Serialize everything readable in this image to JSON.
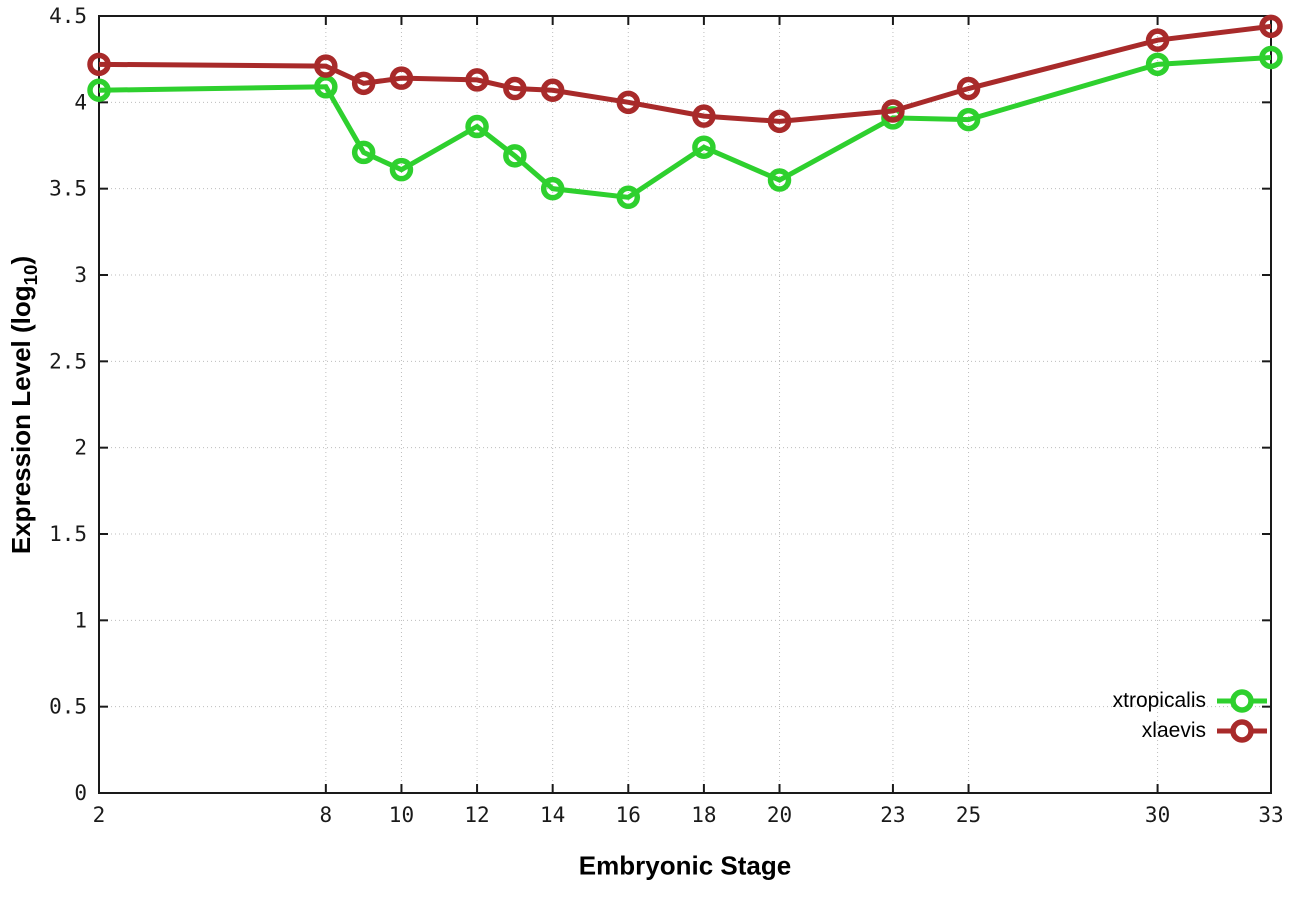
{
  "chart_data": {
    "type": "line",
    "x": [
      2,
      8,
      9,
      10,
      12,
      13,
      14,
      16,
      18,
      20,
      23,
      25,
      30,
      33
    ],
    "series": [
      {
        "name": "xtropicalis",
        "color": "#2ed02e",
        "values": [
          4.07,
          4.09,
          3.71,
          3.61,
          3.86,
          3.69,
          3.5,
          3.45,
          3.74,
          3.55,
          3.91,
          3.9,
          4.22,
          4.26
        ]
      },
      {
        "name": "xlaevis",
        "color": "#a82a2a",
        "values": [
          4.22,
          4.21,
          4.11,
          4.14,
          4.13,
          4.08,
          4.07,
          4.0,
          3.92,
          3.89,
          3.95,
          4.08,
          4.36,
          4.44
        ]
      }
    ],
    "title": "",
    "xlabel": "Embryonic Stage",
    "ylabel": "Expression Level (log10)",
    "ylabel_parts": {
      "main": "Expression Level (log",
      "sub": "10",
      "end": ")"
    },
    "xlim": [
      2,
      33
    ],
    "ylim": [
      0,
      4.5
    ],
    "xticks": [
      2,
      8,
      10,
      12,
      14,
      16,
      18,
      20,
      23,
      25,
      30,
      33
    ],
    "xtick_labels": [
      "2",
      "8",
      "10",
      "12",
      "14",
      "16",
      "18",
      "20",
      "23",
      "25",
      "30",
      "33"
    ],
    "yticks": [
      0,
      0.5,
      1,
      1.5,
      2,
      2.5,
      3,
      3.5,
      4,
      4.5
    ],
    "ytick_labels": [
      "0",
      "0.5",
      "1",
      "1.5",
      "2",
      "2.5",
      "3",
      "3.5",
      "4",
      "4.5"
    ],
    "grid": true,
    "grid_style": "dotted",
    "legend_position": "inside-bottom-right",
    "marker": "open-circle",
    "colors": {
      "grid": "#bdbdbd",
      "axis_border": "#1a1a1a",
      "tick_text": "#1a1a1a",
      "background": "#ffffff"
    }
  }
}
